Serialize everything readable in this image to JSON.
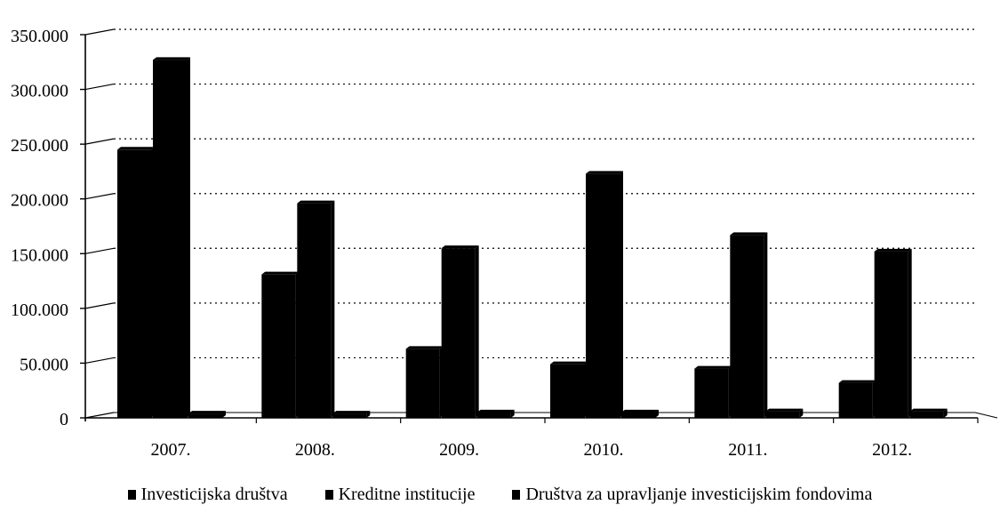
{
  "chart_data": {
    "type": "bar",
    "title": "",
    "xlabel": "",
    "ylabel": "",
    "categories": [
      "2007.",
      "2008.",
      "2009.",
      "2010.",
      "2011.",
      "2012."
    ],
    "series": [
      {
        "name": "Investicijska društva",
        "values": [
          245000,
          131000,
          63000,
          49000,
          45000,
          32000
        ]
      },
      {
        "name": "Kreditne institucije",
        "values": [
          327000,
          196000,
          155000,
          223000,
          167000,
          152000
        ]
      },
      {
        "name": "Društva za upravljanje investicijskim fondovima",
        "values": [
          4000,
          4000,
          5000,
          5000,
          6000,
          6000
        ]
      }
    ],
    "ylim": [
      0,
      350000
    ],
    "y_ticks": [
      "0",
      "50.000",
      "100.000",
      "150.000",
      "200.000",
      "250.000",
      "300.000",
      "350.000"
    ],
    "grid": "horizontal dotted",
    "legend_position": "bottom",
    "bar_color": "#000000"
  }
}
